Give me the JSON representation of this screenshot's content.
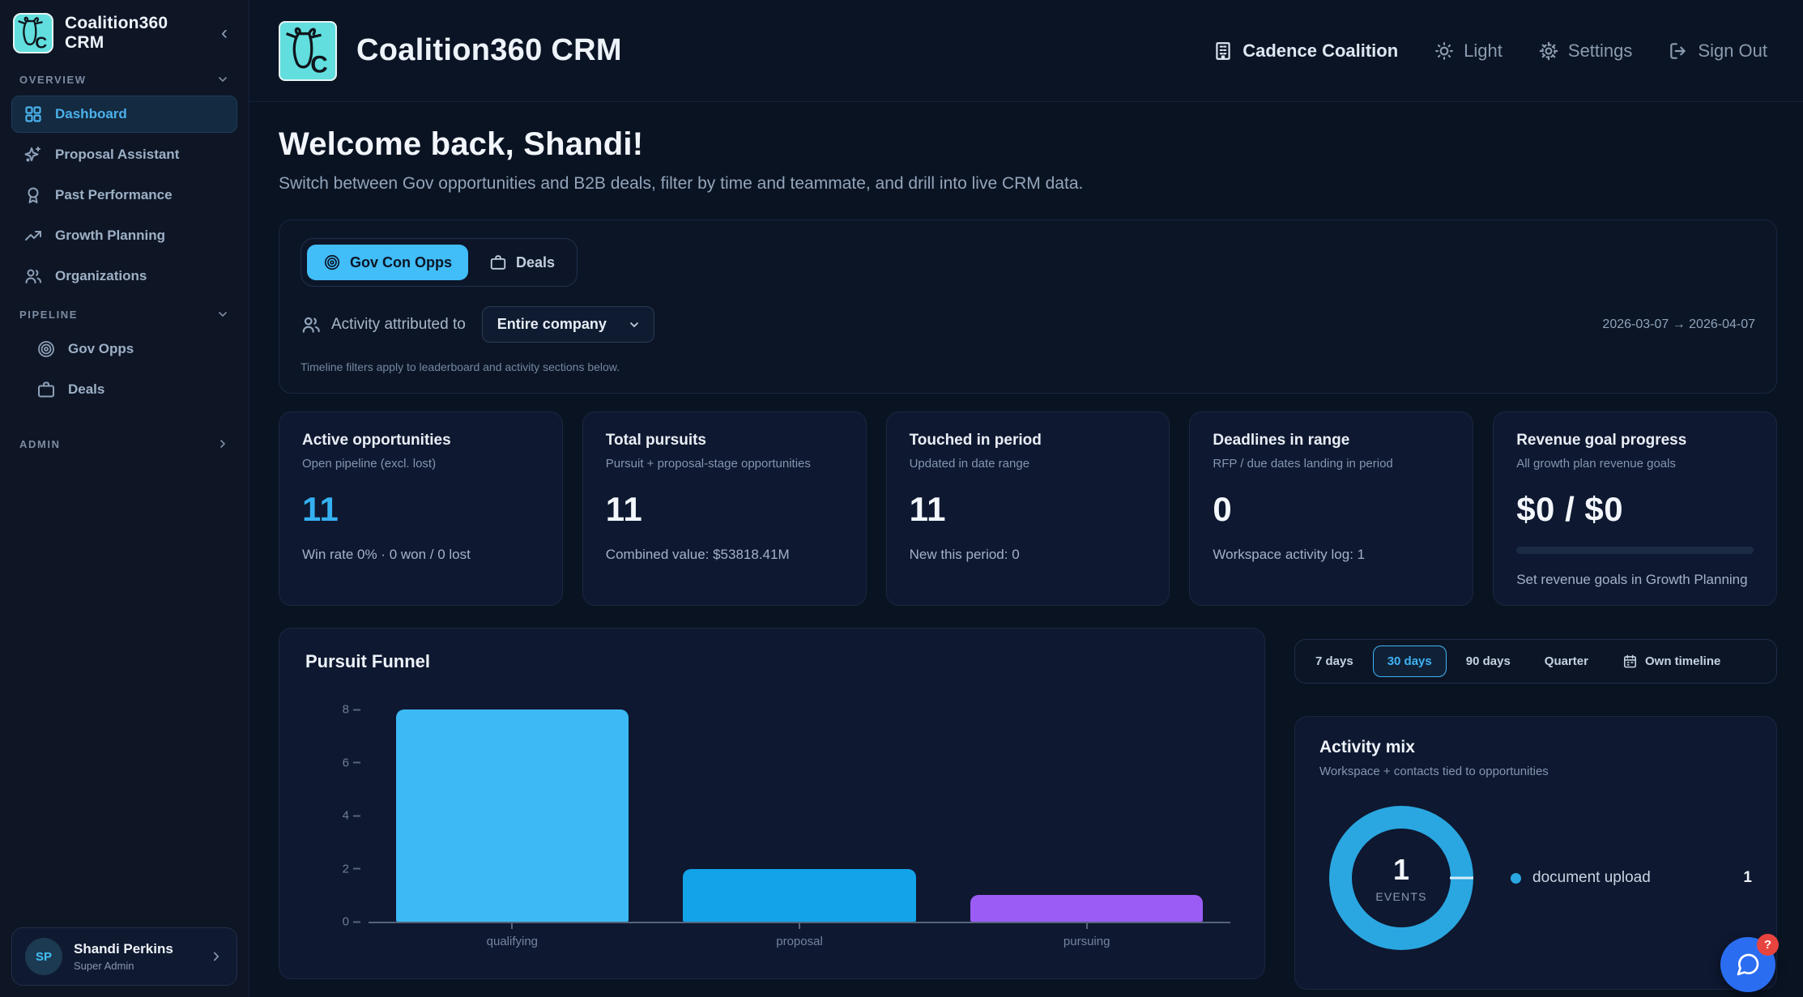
{
  "app": {
    "name": "Coalition360 CRM"
  },
  "colors": {
    "accent": "#38b6f6",
    "active_tab_bg": "#41bdf8",
    "fab_blue": "#2a6df0",
    "badge_red": "#e8443f",
    "bar_qualifying": "#3cbaf5",
    "bar_proposal": "#12a3e8",
    "bar_pursuing": "#9b5cf5",
    "donut_blue": "#2aa7e1"
  },
  "icons": [
    "goat-logo",
    "collapse-chevron",
    "chevron-down",
    "chevron-right",
    "dashboard-grid",
    "sparkles",
    "award",
    "trending-up",
    "users",
    "target",
    "briefcase",
    "building",
    "sun",
    "gear",
    "logout",
    "calendar",
    "chat-bubble"
  ],
  "sidebar": {
    "title": "Coalition360 CRM",
    "overview_label": "OVERVIEW",
    "overview_items": [
      {
        "label": "Dashboard"
      },
      {
        "label": "Proposal Assistant"
      },
      {
        "label": "Past Performance"
      },
      {
        "label": "Growth Planning"
      },
      {
        "label": "Organizations"
      }
    ],
    "pipeline_label": "PIPELINE",
    "pipeline_items": [
      {
        "label": "Gov Opps"
      },
      {
        "label": "Deals"
      }
    ],
    "admin_label": "ADMIN",
    "user": {
      "initials": "SP",
      "name": "Shandi Perkins",
      "role": "Super Admin"
    }
  },
  "header": {
    "title": "Coalition360 CRM",
    "org": "Cadence Coalition",
    "theme_label": "Light",
    "settings_label": "Settings",
    "signout_label": "Sign Out"
  },
  "welcome": {
    "title": "Welcome back, Shandi!",
    "subtitle": "Switch between Gov opportunities and B2B deals, filter by time and teammate, and drill into live CRM data."
  },
  "filters": {
    "tabs": [
      {
        "label": "Gov Con Opps",
        "active": true
      },
      {
        "label": "Deals",
        "active": false
      }
    ],
    "attribution_label": "Activity attributed to",
    "attribution_value": "Entire company",
    "date_range": "2026-03-07 → 2026-04-07",
    "note": "Timeline filters apply to leaderboard and activity sections below."
  },
  "stats": {
    "cards": [
      {
        "title": "Active opportunities",
        "subtitle": "Open pipeline (excl. lost)",
        "value": "11",
        "footnote": "Win rate 0% · 0 won / 0 lost"
      },
      {
        "title": "Total pursuits",
        "subtitle": "Pursuit + proposal-stage opportunities",
        "value": "11",
        "footnote": "Combined value: $53818.41M"
      },
      {
        "title": "Touched in period",
        "subtitle": "Updated in date range",
        "value": "11",
        "footnote": "New this period: 0"
      },
      {
        "title": "Deadlines in range",
        "subtitle": "RFP / due dates landing in period",
        "value": "0",
        "footnote": "Workspace activity log: 1"
      },
      {
        "title": "Revenue goal progress",
        "subtitle": "All growth plan revenue goals",
        "value": "$0 / $0",
        "footnote": "Set revenue goals in Growth Planning",
        "progress_pct": 0
      }
    ]
  },
  "timeframe": {
    "buttons": [
      {
        "label": "7 days",
        "active": false
      },
      {
        "label": "30 days",
        "active": true
      },
      {
        "label": "90 days",
        "active": false
      },
      {
        "label": "Quarter",
        "active": false
      },
      {
        "label": "Own timeline",
        "active": false,
        "icon": "calendar"
      }
    ]
  },
  "chart_data": [
    {
      "type": "bar",
      "title": "Pursuit Funnel",
      "categories": [
        "qualifying",
        "proposal",
        "pursuing"
      ],
      "values": [
        8,
        2,
        1
      ],
      "colors": [
        "#3cbaf5",
        "#12a3e8",
        "#9b5cf5"
      ],
      "xlabel": "",
      "ylabel": "",
      "ylim": [
        0,
        8
      ],
      "yticks": [
        0,
        2,
        4,
        6,
        8
      ],
      "grid": false,
      "legend_position": "none"
    },
    {
      "type": "donut",
      "title": "Activity mix",
      "subtitle": "Workspace + contacts tied to opportunities",
      "center_value": "1",
      "center_label": "EVENTS",
      "segments": [
        {
          "label": "document upload",
          "value": 1,
          "color": "#2aa7e1"
        }
      ]
    }
  ],
  "fab": {
    "badge": "?"
  }
}
